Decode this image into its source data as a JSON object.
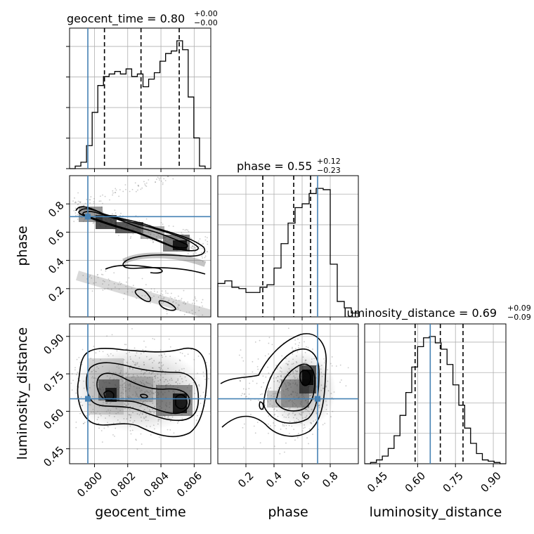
{
  "chart_data": {
    "type": "corner",
    "parameters": [
      "geocent_time",
      "phase",
      "luminosity_distance"
    ],
    "titles": [
      {
        "parameter": "geocent_time",
        "name": "geocent_time",
        "median": "0.80",
        "plus": "+0.00",
        "minus": "−0.00"
      },
      {
        "parameter": "phase",
        "name": "phase",
        "median": "0.55",
        "plus": "+0.12",
        "minus": "−0.23"
      },
      {
        "parameter": "luminosity_distance",
        "name": "luminosity_distance",
        "median": "0.69",
        "plus": "+0.09",
        "minus": "−0.09"
      }
    ],
    "ranges": [
      [
        0.7985,
        0.807
      ],
      [
        0.0,
        1.0
      ],
      [
        0.39,
        0.95
      ]
    ],
    "ticks": [
      [
        0.8,
        0.802,
        0.804,
        0.806
      ],
      [
        0.2,
        0.4,
        0.6,
        0.8
      ],
      [
        0.45,
        0.6,
        0.75,
        0.9
      ]
    ],
    "tick_labels": [
      [
        "0.800",
        "0.802",
        "0.804",
        "0.806"
      ],
      [
        "0.2",
        "0.4",
        "0.6",
        "0.8"
      ],
      [
        "0.45",
        "0.60",
        "0.75",
        "0.90"
      ]
    ],
    "truths": [
      0.7996,
      0.71,
      0.65
    ],
    "truth_color": "#4682b4",
    "quantiles": [
      [
        0.8006,
        0.8028,
        0.8051
      ],
      [
        0.32,
        0.54,
        0.66
      ],
      [
        0.59,
        0.69,
        0.78
      ]
    ],
    "histograms": [
      [
        0,
        0.02,
        0.05,
        0.18,
        0.44,
        0.65,
        0.72,
        0.74,
        0.76,
        0.74,
        0.78,
        0.72,
        0.74,
        0.64,
        0.7,
        0.75,
        0.84,
        0.9,
        0.92,
        1.0,
        0.93,
        0.56,
        0.24,
        0.02,
        0
      ],
      [
        0.26,
        0.28,
        0.23,
        0.22,
        0.19,
        0.19,
        0.23,
        0.25,
        0.38,
        0.57,
        0.73,
        0.85,
        0.88,
        0.96,
        1.0,
        0.99,
        0.41,
        0.12,
        0.07,
        0.03
      ],
      [
        0,
        0.01,
        0.03,
        0.06,
        0.12,
        0.22,
        0.38,
        0.56,
        0.76,
        0.92,
        0.99,
        1.0,
        0.95,
        0.9,
        0.78,
        0.62,
        0.46,
        0.28,
        0.16,
        0.08,
        0.03,
        0.02,
        0.01,
        0
      ]
    ]
  },
  "colors": {
    "truth": "#4682b4",
    "grid": "#b0b0b0",
    "contour": "#000000",
    "sample_dots": "#8a8a8a"
  }
}
